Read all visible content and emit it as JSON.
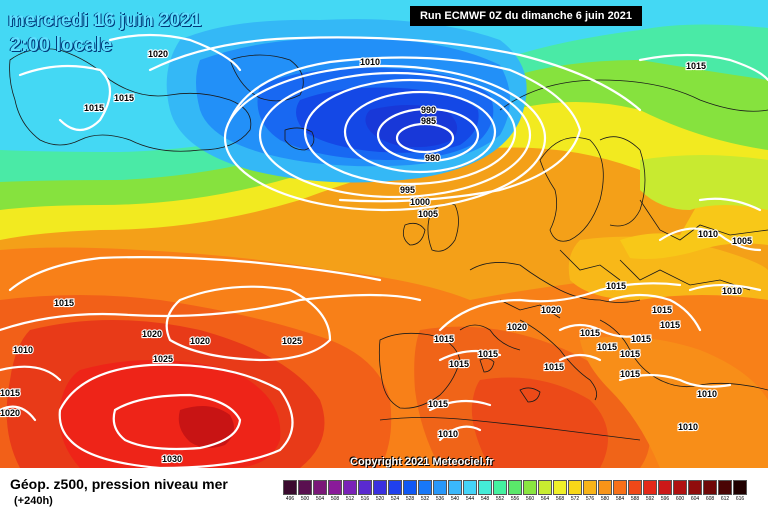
{
  "map": {
    "date_line": "mercredi 16 juin 2021",
    "time_line": "2:00 locale",
    "run_info": "Run ECMWF 0Z du dimanche 6 juin 2021",
    "copyright": "Copyright 2021 Meteociel.fr"
  },
  "isobar_labels": [
    {
      "t": "1020"
    },
    {
      "t": "1015"
    },
    {
      "t": "1015"
    },
    {
      "t": "1010"
    },
    {
      "t": "990"
    },
    {
      "t": "985"
    },
    {
      "t": "980"
    },
    {
      "t": "995"
    },
    {
      "t": "1000"
    },
    {
      "t": "1005"
    },
    {
      "t": "1015"
    },
    {
      "t": "1010"
    },
    {
      "t": "1005"
    },
    {
      "t": "1010"
    },
    {
      "t": "1015"
    },
    {
      "t": "1015"
    },
    {
      "t": "1020"
    },
    {
      "t": "1015"
    },
    {
      "t": "1010"
    },
    {
      "t": "1020"
    },
    {
      "t": "1020"
    },
    {
      "t": "1025"
    },
    {
      "t": "1025"
    },
    {
      "t": "1030"
    },
    {
      "t": "1015"
    },
    {
      "t": "1020"
    },
    {
      "t": "1020"
    },
    {
      "t": "1015"
    },
    {
      "t": "1015"
    },
    {
      "t": "1015"
    },
    {
      "t": "1015"
    },
    {
      "t": "1015"
    },
    {
      "t": "1015"
    },
    {
      "t": "1015"
    },
    {
      "t": "1015"
    },
    {
      "t": "1015"
    },
    {
      "t": "1015"
    },
    {
      "t": "1015"
    },
    {
      "t": "1010"
    },
    {
      "t": "1010"
    },
    {
      "t": "1010"
    }
  ],
  "legend": {
    "title": "Géop. z500, pression niveau mer",
    "subtitle": "(+240h)",
    "scale": [
      {
        "v": "496",
        "c": "#3a0a2e"
      },
      {
        "v": "500",
        "c": "#5a1050"
      },
      {
        "v": "504",
        "c": "#7a1878"
      },
      {
        "v": "508",
        "c": "#8a1a9a"
      },
      {
        "v": "512",
        "c": "#7a22b8"
      },
      {
        "v": "516",
        "c": "#5a2ad0"
      },
      {
        "v": "520",
        "c": "#3a30e0"
      },
      {
        "v": "524",
        "c": "#2040ee"
      },
      {
        "v": "528",
        "c": "#1058f5"
      },
      {
        "v": "532",
        "c": "#1878f8"
      },
      {
        "v": "536",
        "c": "#2898fa"
      },
      {
        "v": "540",
        "c": "#3ab8fb"
      },
      {
        "v": "544",
        "c": "#44d4f8"
      },
      {
        "v": "548",
        "c": "#44ecd8"
      },
      {
        "v": "552",
        "c": "#44f2a0"
      },
      {
        "v": "556",
        "c": "#5ae86a"
      },
      {
        "v": "560",
        "c": "#8ae640"
      },
      {
        "v": "564",
        "c": "#c8ec30"
      },
      {
        "v": "568",
        "c": "#f0f028"
      },
      {
        "v": "572",
        "c": "#f8d818"
      },
      {
        "v": "576",
        "c": "#f8b418"
      },
      {
        "v": "580",
        "c": "#f89418"
      },
      {
        "v": "584",
        "c": "#f87018"
      },
      {
        "v": "588",
        "c": "#f04818"
      },
      {
        "v": "592",
        "c": "#e42818"
      },
      {
        "v": "596",
        "c": "#cc1818"
      },
      {
        "v": "600",
        "c": "#b01010"
      },
      {
        "v": "604",
        "c": "#900c0c"
      },
      {
        "v": "608",
        "c": "#700808"
      },
      {
        "v": "612",
        "c": "#4a0404"
      },
      {
        "v": "616",
        "c": "#200000"
      }
    ]
  }
}
